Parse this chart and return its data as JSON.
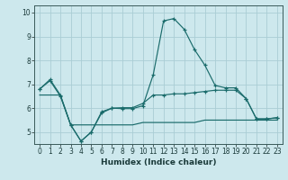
{
  "title": "",
  "xlabel": "Humidex (Indice chaleur)",
  "ylabel": "",
  "bg_color": "#cde8ed",
  "grid_color": "#aacdd4",
  "line_color": "#1a6b6b",
  "xlim": [
    -0.5,
    23.5
  ],
  "ylim": [
    4.5,
    10.3
  ],
  "xticks": [
    0,
    1,
    2,
    3,
    4,
    5,
    6,
    7,
    8,
    9,
    10,
    11,
    12,
    13,
    14,
    15,
    16,
    17,
    18,
    19,
    20,
    21,
    22,
    23
  ],
  "yticks": [
    5,
    6,
    7,
    8,
    9,
    10
  ],
  "line1_x": [
    0,
    1,
    2,
    3,
    4,
    5,
    6,
    7,
    8,
    9,
    10,
    11,
    12,
    13,
    14,
    15,
    16,
    17,
    18,
    19,
    20,
    21,
    22,
    23
  ],
  "line1_y": [
    6.8,
    7.2,
    6.55,
    5.3,
    4.62,
    5.0,
    5.85,
    6.0,
    6.02,
    6.02,
    6.2,
    6.55,
    6.55,
    6.6,
    6.6,
    6.65,
    6.7,
    6.75,
    6.75,
    6.75,
    6.4,
    5.55,
    5.55,
    5.6
  ],
  "line2_x": [
    0,
    1,
    2,
    3,
    4,
    5,
    6,
    7,
    8,
    9,
    10,
    11,
    12,
    13,
    14,
    15,
    16,
    17,
    18,
    19,
    20,
    21,
    22,
    23
  ],
  "line2_y": [
    6.8,
    7.15,
    6.5,
    5.3,
    4.62,
    5.0,
    5.8,
    6.0,
    5.98,
    5.98,
    6.1,
    7.4,
    9.65,
    9.75,
    9.3,
    8.45,
    7.8,
    6.95,
    6.85,
    6.85,
    6.4,
    5.55,
    5.55,
    5.6
  ],
  "line3_x": [
    0,
    1,
    2,
    3,
    4,
    5,
    6,
    7,
    8,
    9,
    10,
    11,
    12,
    13,
    14,
    15,
    16,
    17,
    18,
    19,
    20,
    21,
    22,
    23
  ],
  "line3_y": [
    6.55,
    6.55,
    6.55,
    5.3,
    5.3,
    5.3,
    5.3,
    5.3,
    5.3,
    5.3,
    5.4,
    5.4,
    5.4,
    5.4,
    5.4,
    5.4,
    5.5,
    5.5,
    5.5,
    5.5,
    5.5,
    5.5,
    5.5,
    5.5
  ]
}
